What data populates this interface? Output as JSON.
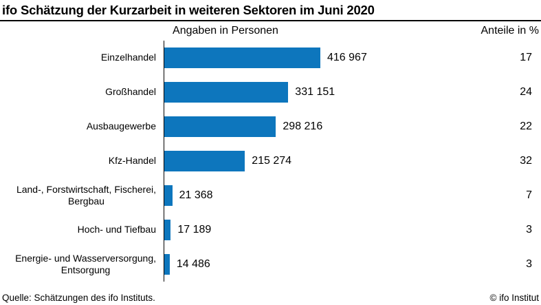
{
  "title": "ifo Schätzung der Kurzarbeit in weiteren Sektoren im Juni 2020",
  "column_headers": {
    "left": "Angaben in Personen",
    "right": "Anteile in %"
  },
  "footer": {
    "source": "Quelle: Schätzungen des ifo Instituts.",
    "copyright": "© ifo Institut"
  },
  "colors": {
    "bar": "#0d76bd",
    "text": "#000000",
    "rule": "#000000"
  },
  "chart_data": {
    "type": "bar",
    "orientation": "horizontal",
    "title": "ifo Schätzung der Kurzarbeit in weiteren Sektoren im Juni 2020",
    "left_column_header": "Angaben in Personen",
    "right_column_header": "Anteile in %",
    "categories": [
      "Einzelhandel",
      "Großhandel",
      "Ausbaugewerbe",
      "Kfz-Handel",
      "Land-, Forstwirtschaft, Fischerei,\nBergbau",
      "Hoch- und Tiefbau",
      "Energie- und Wasserversorgung,\nEntsorgung"
    ],
    "values": [
      416967,
      331151,
      298216,
      215274,
      21368,
      17189,
      14486
    ],
    "value_labels": [
      "416 967",
      "331 151",
      "298 216",
      "215 274",
      "21 368",
      "17 189",
      "14 486"
    ],
    "shares_percent": [
      17,
      24,
      22,
      32,
      7,
      3,
      3
    ],
    "xlim": [
      0,
      416967
    ],
    "grid": false,
    "legend": false,
    "bar_color": "#0d76bd"
  }
}
